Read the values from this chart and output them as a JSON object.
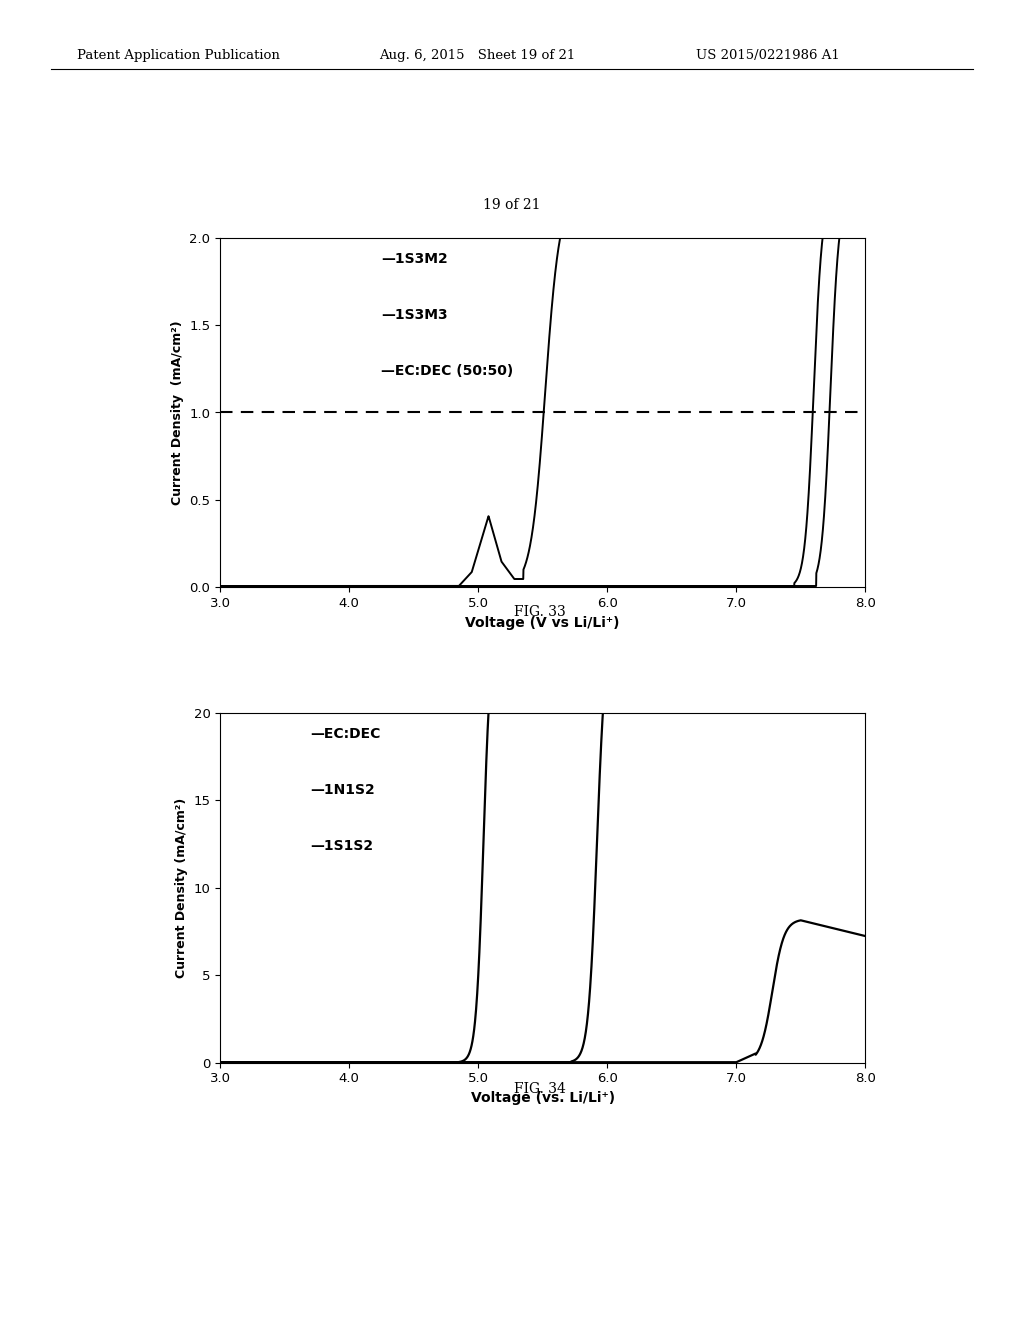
{
  "fig33": {
    "title": "FIG. 33",
    "xlabel": "Voltage (V vs Li/Li⁺)",
    "ylabel": "Current Density  (mA/cm²)",
    "xlim": [
      3.0,
      8.0
    ],
    "ylim": [
      0.0,
      2.0
    ],
    "xticks": [
      3.0,
      4.0,
      5.0,
      6.0,
      7.0,
      8.0
    ],
    "yticks": [
      0.0,
      0.5,
      1.0,
      1.5,
      2.0
    ],
    "dashed_line_y": 1.0,
    "legend": [
      "—1S3M2",
      "—1S3M3",
      "—EC:DEC (50:50)"
    ]
  },
  "fig34": {
    "title": "FIG. 34",
    "xlabel": "Voltage (vs. Li/Li⁺)",
    "ylabel": "Current Density (mA/cm²)",
    "xlim": [
      3.0,
      8.0
    ],
    "ylim": [
      0,
      20
    ],
    "xticks": [
      3.0,
      4.0,
      5.0,
      6.0,
      7.0,
      8.0
    ],
    "yticks": [
      0,
      5,
      10,
      15,
      20
    ],
    "legend": [
      "—EC:DEC",
      "—1N1S2",
      "—1S1S2"
    ]
  },
  "page_label": "19 of 21",
  "header_left": "Patent Application Publication",
  "header_mid": "Aug. 6, 2015 Sheet 19 of 21",
  "header_right": "US 2015/0221986 A1"
}
